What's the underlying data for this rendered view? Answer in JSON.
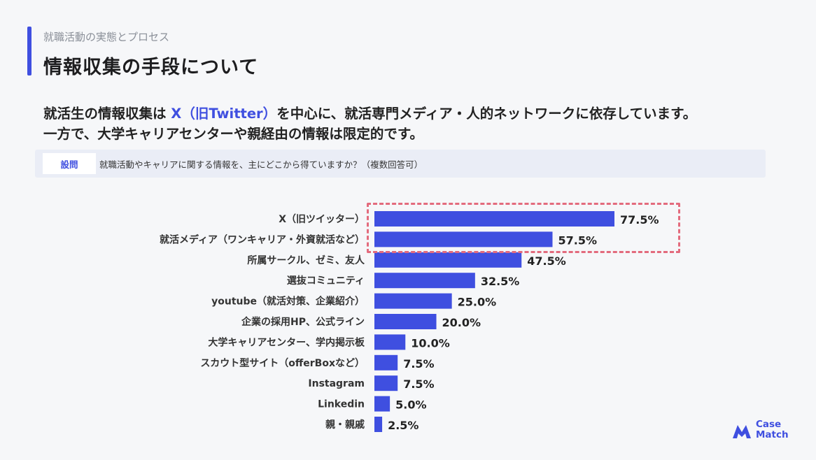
{
  "header": {
    "section_label": "就職活動の実態とプロセス",
    "title": "情報収集の手段について"
  },
  "lead": {
    "line1_prefix": "就活生の情報収集は ",
    "line1_highlight": "X（旧Twitter）",
    "line1_suffix": "を中心に、就活専門メディア・人的ネットワークに依存しています。",
    "line2": "一方で、大学キャリアセンターや親経由の情報は限定的です。"
  },
  "question": {
    "badge": "設問",
    "text": "就職活動やキャリアに関する情報を、主にどこから得ていますか？（複数回答可）"
  },
  "brand": {
    "line1": "Case",
    "line2": "Match"
  },
  "colors": {
    "accent": "#3f4fe0",
    "highlight": "#e36b7d"
  },
  "chart_data": {
    "type": "bar",
    "orientation": "horizontal",
    "categories": [
      "X（旧ツイッター）",
      "就活メディア（ワンキャリア・外資就活など）",
      "所属サークル、ゼミ、友人",
      "選抜コミュニティ",
      "youtube（就活対策、企業紹介）",
      "企業の採用HP、公式ライン",
      "大学キャリアセンター、学内掲示板",
      "スカウト型サイト（offerBoxなど）",
      "Instagram",
      "Linkedin",
      "親・親戚"
    ],
    "values": [
      77.5,
      57.5,
      47.5,
      32.5,
      25.0,
      20.0,
      10.0,
      7.5,
      7.5,
      5.0,
      2.5
    ],
    "value_labels": [
      "77.5%",
      "57.5%",
      "47.5%",
      "32.5%",
      "25.0%",
      "20.0%",
      "10.0%",
      "7.5%",
      "7.5%",
      "5.0%",
      "2.5%"
    ],
    "xlim": [
      0,
      100
    ],
    "highlighted_categories": [
      "X（旧ツイッター）",
      "就活メディア（ワンキャリア・外資就活など）"
    ]
  }
}
